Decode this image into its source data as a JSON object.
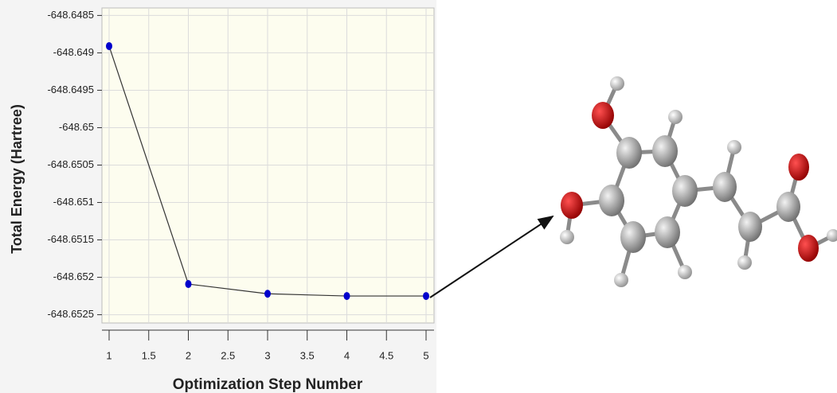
{
  "chart_data": {
    "type": "line",
    "y_label": "Total Energy  (Hartree)",
    "x_label": "Optimization Step Number",
    "x": [
      1,
      2,
      3,
      4,
      5
    ],
    "series": [
      {
        "color": "#0000cc",
        "values": [
          -648.64891,
          -648.65209,
          -648.65222,
          -648.65225,
          -648.65225
        ]
      }
    ],
    "xlim": [
      1,
      5
    ],
    "xticks": [
      1,
      1.5,
      2,
      2.5,
      3,
      3.5,
      4,
      4.5,
      5
    ],
    "ylim": [
      -648.6526,
      -648.6484
    ],
    "yticks": [
      -648.6485,
      -648.649,
      -648.6495,
      -648.65,
      -648.6505,
      -648.651,
      -648.6515,
      -648.652,
      -648.6525
    ],
    "grid": true
  }
}
